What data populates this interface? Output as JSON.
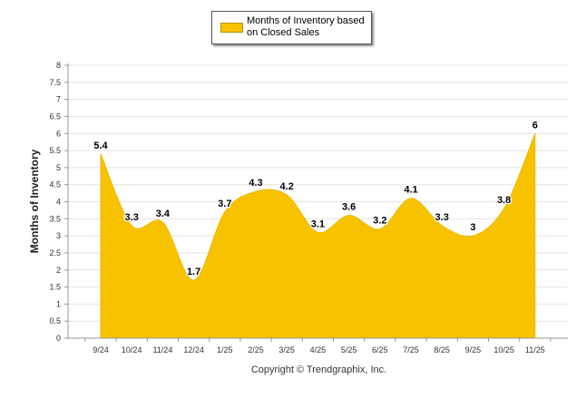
{
  "chart_data": {
    "type": "area",
    "title": "",
    "categories": [
      "9/24",
      "10/24",
      "11/24",
      "12/24",
      "1/25",
      "2/25",
      "3/25",
      "4/25",
      "5/25",
      "6/25",
      "7/25",
      "8/25",
      "9/25",
      "10/25",
      "11/25"
    ],
    "series": [
      {
        "name": "Months of Inventory based on Closed Sales",
        "values": [
          5.4,
          3.3,
          3.4,
          1.7,
          3.7,
          4.3,
          4.2,
          3.1,
          3.6,
          3.2,
          4.1,
          3.3,
          3,
          3.8,
          6
        ],
        "color": "#f7c200"
      }
    ],
    "data_labels": [
      "5.4",
      "3.3",
      "3.4",
      "1.7",
      "3.7",
      "4.3",
      "4.2",
      "3.1",
      "3.6",
      "3.2",
      "4.1",
      "3.3",
      "3",
      "3.8",
      "6"
    ],
    "xlabel": "",
    "ylabel": "Months of Inventory",
    "ylim": [
      0,
      8
    ],
    "yticks": [
      "0",
      "0.5",
      "1",
      "1.5",
      "2",
      "2.5",
      "3",
      "3.5",
      "4",
      "4.5",
      "5",
      "5.5",
      "6",
      "6.5",
      "7",
      "7.5",
      "8"
    ],
    "grid": true,
    "legend_position": "top-center"
  },
  "legend": {
    "label": "Months of Inventory based on Closed Sales"
  },
  "footer": {
    "copyright": "Copyright © Trendgraphix, Inc."
  },
  "colors": {
    "fill": "#f7c200",
    "grid": "#e4e4e4",
    "axis": "#999999"
  }
}
